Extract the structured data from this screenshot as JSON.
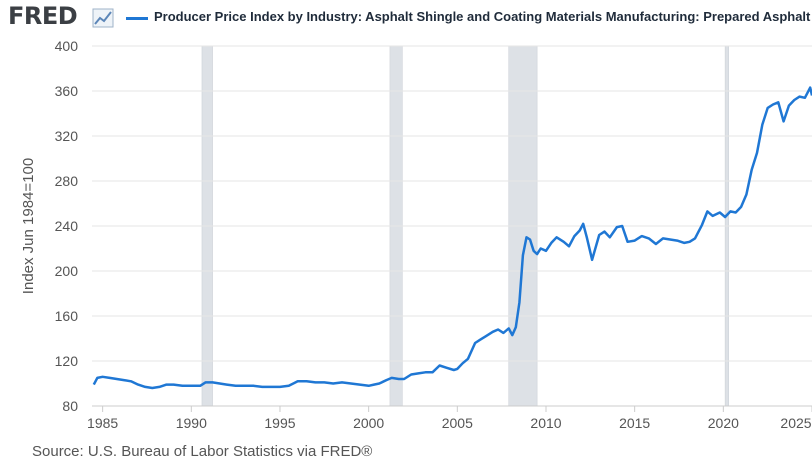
{
  "header": {
    "logo_text": "FRED",
    "logo_icon": "line-chart-icon",
    "legend_label": "Producer Price Index by Industry: Asphalt Shingle and Coating Materials Manufacturing: Prepared Asphalt a"
  },
  "source": "Source: U.S. Bureau of Labor Statistics via FRED®",
  "colors": {
    "series": "#1f77d4",
    "recession": "#dde1e6",
    "grid": "#e6e6e6",
    "text": "#555555"
  },
  "chart_data": {
    "type": "line",
    "ylabel": "Index Jun 1984=100",
    "xlabel": "",
    "title": "",
    "xlim": [
      1984.4,
      2025.0
    ],
    "ylim": [
      80,
      400
    ],
    "x_ticks": [
      1985,
      1990,
      1995,
      2000,
      2005,
      2010,
      2015,
      2020,
      2025
    ],
    "y_ticks": [
      80,
      120,
      160,
      200,
      240,
      280,
      320,
      360,
      400
    ],
    "grid": true,
    "recessions": [
      [
        1990.6,
        1991.2
      ],
      [
        2001.2,
        2001.9
      ],
      [
        2007.9,
        2009.5
      ],
      [
        2020.1,
        2020.3
      ]
    ],
    "series": [
      {
        "name": "Producer Price Index by Industry: Asphalt Shingle and Coating Materials Manufacturing: Prepared Asphalt a",
        "x": [
          1984.5,
          1984.7,
          1985.0,
          1985.4,
          1985.8,
          1986.2,
          1986.6,
          1987.0,
          1987.4,
          1987.8,
          1988.2,
          1988.6,
          1989.0,
          1989.5,
          1990.0,
          1990.5,
          1990.8,
          1991.2,
          1991.6,
          1992.0,
          1992.5,
          1993.0,
          1993.5,
          1994.0,
          1994.5,
          1995.0,
          1995.5,
          1996.0,
          1996.5,
          1997.0,
          1997.5,
          1998.0,
          1998.5,
          1999.0,
          1999.5,
          2000.0,
          2000.3,
          2000.6,
          2001.0,
          2001.3,
          2001.7,
          2002.0,
          2002.4,
          2002.8,
          2003.2,
          2003.6,
          2004.0,
          2004.4,
          2004.8,
          2005.0,
          2005.3,
          2005.6,
          2006.0,
          2006.3,
          2006.6,
          2007.0,
          2007.3,
          2007.6,
          2007.9,
          2008.1,
          2008.3,
          2008.5,
          2008.7,
          2008.9,
          2009.1,
          2009.3,
          2009.5,
          2009.7,
          2010.0,
          2010.3,
          2010.6,
          2011.0,
          2011.3,
          2011.6,
          2011.9,
          2012.1,
          2012.3,
          2012.6,
          2013.0,
          2013.3,
          2013.6,
          2014.0,
          2014.3,
          2014.6,
          2015.0,
          2015.4,
          2015.8,
          2016.2,
          2016.6,
          2017.0,
          2017.4,
          2017.8,
          2018.1,
          2018.4,
          2018.8,
          2019.1,
          2019.4,
          2019.8,
          2020.1,
          2020.4,
          2020.7,
          2021.0,
          2021.3,
          2021.6,
          2021.9,
          2022.2,
          2022.5,
          2022.8,
          2023.1,
          2023.4,
          2023.7,
          2024.0,
          2024.3,
          2024.6,
          2024.9,
          2025.0
        ],
        "values": [
          99,
          105,
          106,
          105,
          104,
          103,
          102,
          99,
          97,
          96,
          97,
          99,
          99,
          98,
          98,
          98,
          101,
          101,
          100,
          99,
          98,
          98,
          98,
          97,
          97,
          97,
          98,
          102,
          102,
          101,
          101,
          100,
          101,
          100,
          99,
          98,
          99,
          100,
          103,
          105,
          104,
          104,
          108,
          109,
          110,
          110,
          116,
          114,
          112,
          113,
          118,
          122,
          136,
          139,
          142,
          146,
          148,
          145,
          149,
          143,
          150,
          172,
          214,
          230,
          228,
          218,
          215,
          220,
          218,
          225,
          230,
          226,
          222,
          231,
          236,
          242,
          230,
          210,
          232,
          235,
          230,
          239,
          240,
          226,
          227,
          231,
          229,
          224,
          229,
          228,
          227,
          225,
          226,
          229,
          241,
          253,
          249,
          252,
          248,
          253,
          252,
          257,
          268,
          290,
          305,
          330,
          345,
          348,
          350,
          333,
          347,
          352,
          355,
          354,
          363,
          356
        ]
      }
    ]
  }
}
